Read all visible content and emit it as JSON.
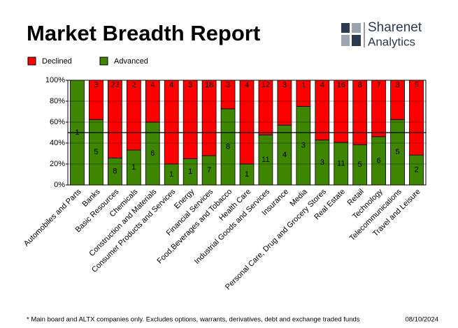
{
  "chart_data": {
    "type": "bar",
    "stacking": "percent",
    "title": "Market Breadth Report",
    "categories": [
      "Automobiles and Parts",
      "Banks",
      "Basic Resources",
      "Chemicals",
      "Construction and Materials",
      "Consumer Products and Services",
      "Energy",
      "Financial Services",
      "Food,Beverages and Tobacco",
      "Health Care",
      "Industrial Goods and Services",
      "Insurance",
      "Media",
      "Personal Care, Drug and Grocery Stores",
      "Real Estate",
      "Retail",
      "Technology",
      "Telecommunications",
      "Travel and Leisure"
    ],
    "series": [
      {
        "name": "Advanced",
        "color": "#3f8600",
        "values": [
          1,
          5,
          8,
          1,
          6,
          1,
          1,
          7,
          8,
          1,
          11,
          4,
          3,
          3,
          11,
          5,
          6,
          5,
          2
        ]
      },
      {
        "name": "Declined",
        "color": "#ff0000",
        "values": [
          0,
          3,
          23,
          2,
          4,
          4,
          3,
          18,
          3,
          4,
          12,
          3,
          1,
          4,
          16,
          8,
          7,
          3,
          5
        ]
      }
    ],
    "legend_order": [
      1,
      0
    ],
    "ylim": [
      0,
      100
    ],
    "yticks": [
      {
        "value": 0,
        "label": "0%"
      },
      {
        "value": 20,
        "label": "20%"
      },
      {
        "value": 40,
        "label": "40%"
      },
      {
        "value": 60,
        "label": "60%"
      },
      {
        "value": 80,
        "label": "80%"
      },
      {
        "value": 100,
        "label": "100%"
      }
    ],
    "reference_line": 50,
    "grid": true
  },
  "logo": {
    "line1": "Sharenet",
    "line2": "Analytics"
  },
  "footnote": "* Main board and ALTX companies only. Excludes options, warrants, derivatives, debt and exchange traded funds",
  "date": "08/10/2024"
}
